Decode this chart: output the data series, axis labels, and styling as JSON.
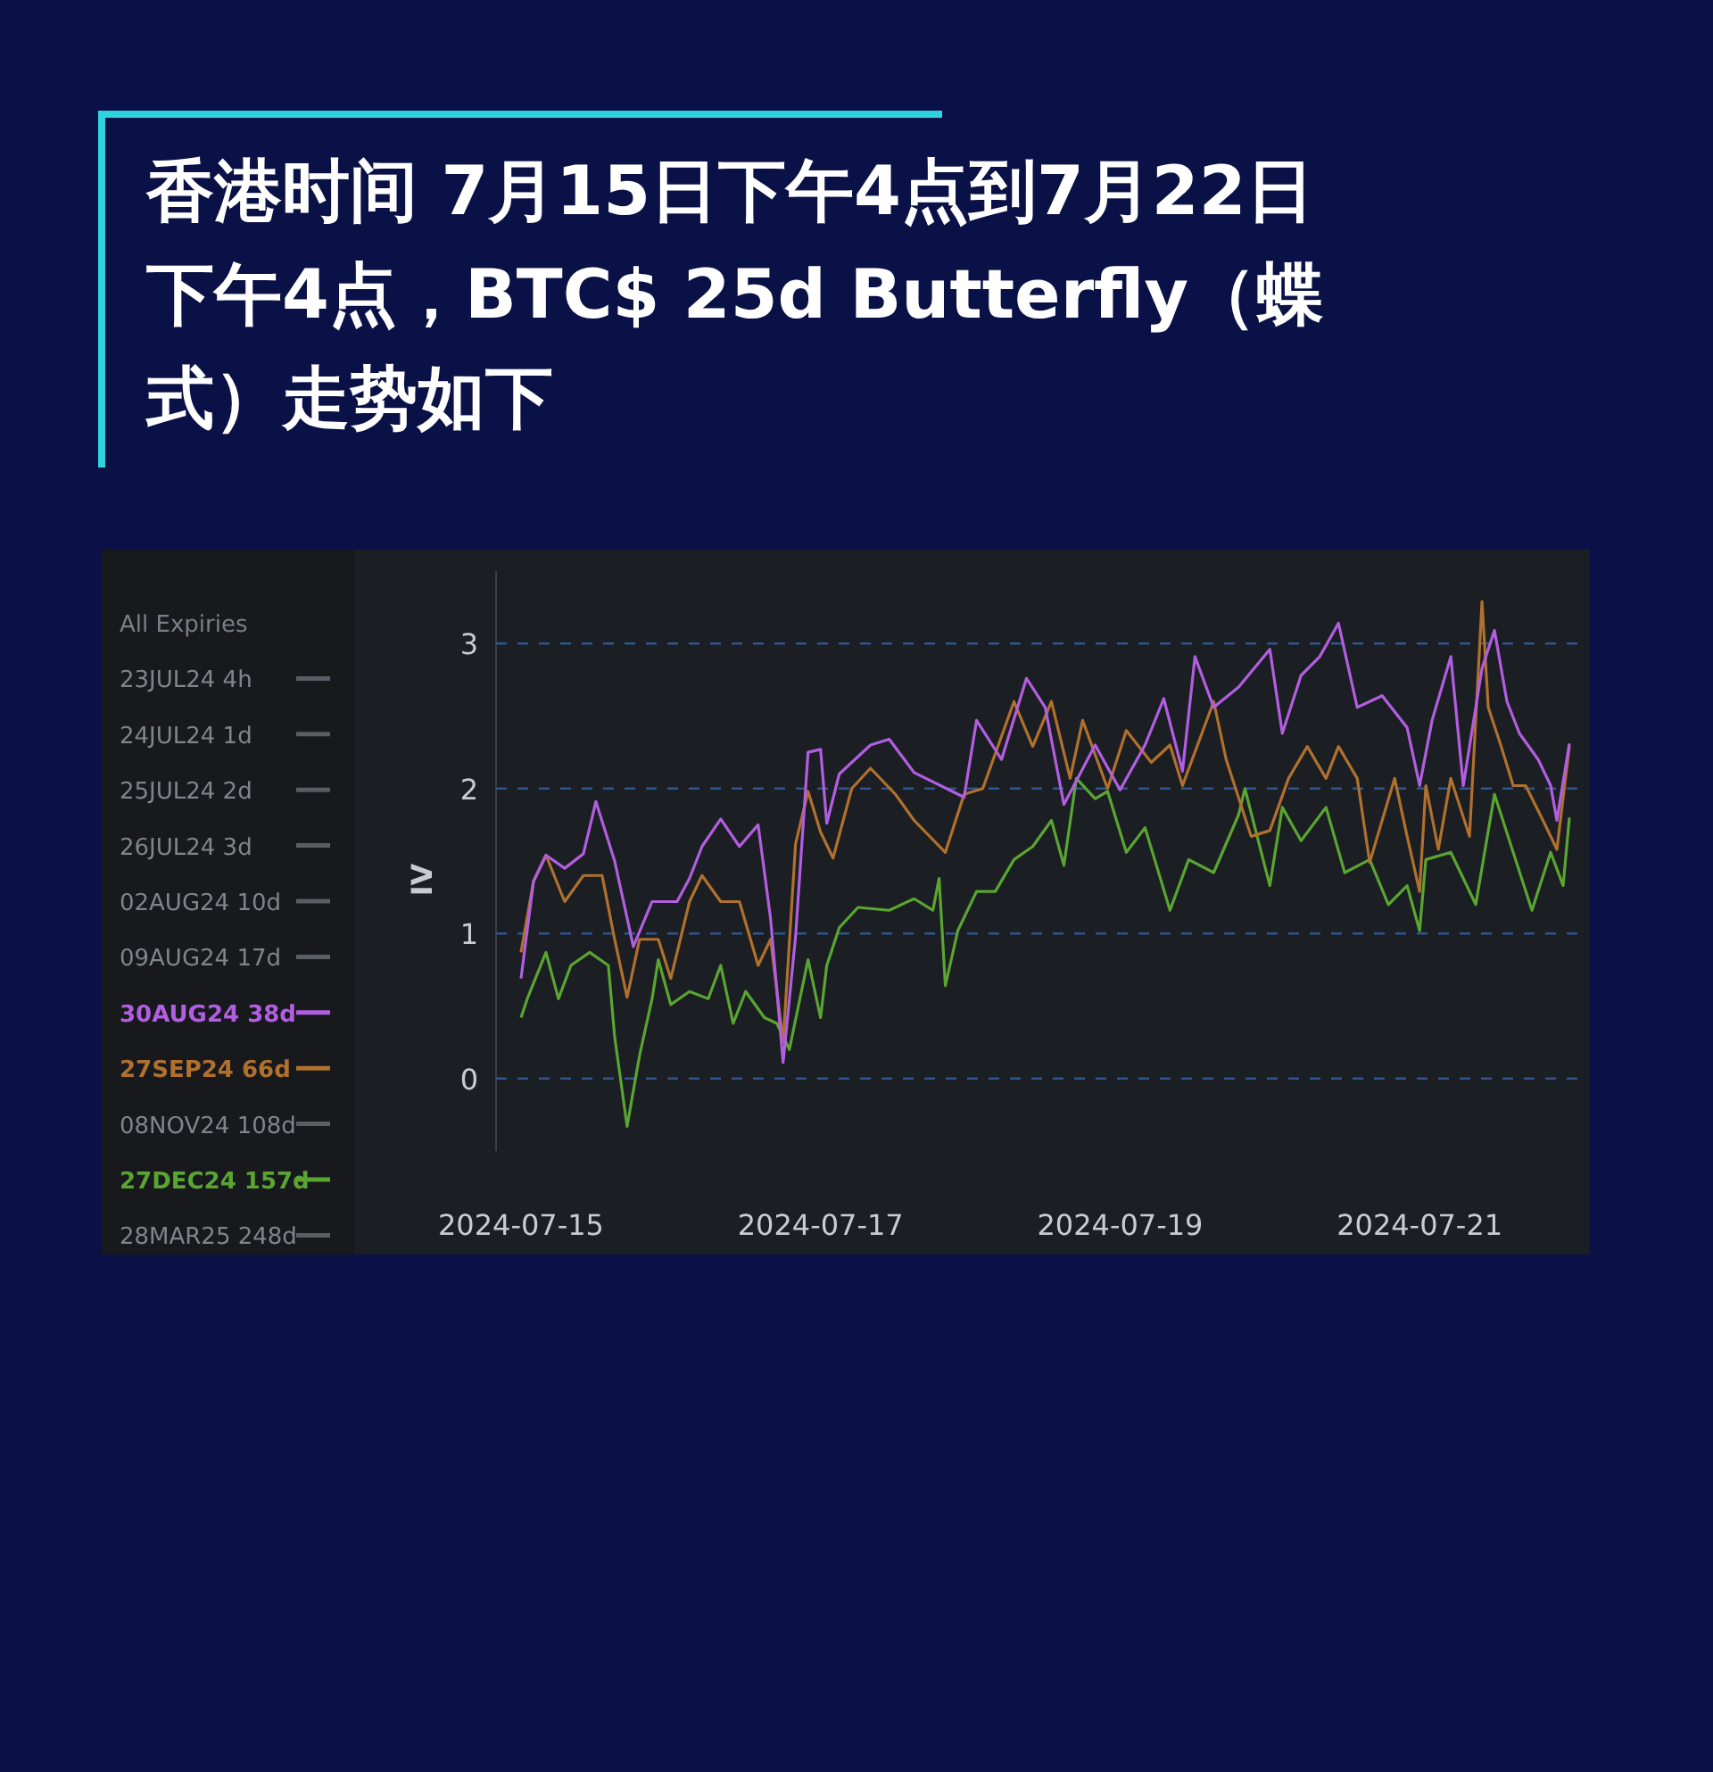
{
  "chart_data": {
    "type": "line",
    "title": "香港时间 7月15日下午4点到7月22日下午4点，BTC$ 25d Butterfly（蝶式）走势如下",
    "ylabel": "IV",
    "legend_title": "All Expiries",
    "legend": "left",
    "grid": "y",
    "xlim": [
      "2024-07-14T20:00",
      "2024-07-22T03:00"
    ],
    "xticks": [
      "2024-07-15",
      "2024-07-17",
      "2024-07-19",
      "2024-07-21"
    ],
    "ylim": [
      -0.5,
      3.5
    ],
    "yticks": [
      0,
      1,
      2,
      3
    ],
    "series": [
      {
        "name": "23JUL24 4h",
        "color": "#5a5e64"
      },
      {
        "name": "24JUL24 1d",
        "color": "#5a5e64"
      },
      {
        "name": "25JUL24 2d",
        "color": "#5a5e64"
      },
      {
        "name": "26JUL24 3d",
        "color": "#5a5e64"
      },
      {
        "name": "02AUG24 10d",
        "color": "#5a5e64"
      },
      {
        "name": "09AUG24 17d",
        "color": "#5a5e64"
      },
      {
        "name": "30AUG24 38d",
        "color": "#b25ee0",
        "x": [
          "2024-07-15T00:00",
          "2024-07-15T02:00",
          "2024-07-15T04:00",
          "2024-07-15T07:00",
          "2024-07-15T10:00",
          "2024-07-15T12:00",
          "2024-07-15T15:00",
          "2024-07-15T18:00",
          "2024-07-15T21:00",
          "2024-07-16T01:00",
          "2024-07-16T03:00",
          "2024-07-16T05:00",
          "2024-07-16T08:00",
          "2024-07-16T11:00",
          "2024-07-16T14:00",
          "2024-07-16T16:00",
          "2024-07-16T18:00",
          "2024-07-16T20:00",
          "2024-07-16T22:00",
          "2024-07-17T00:00",
          "2024-07-17T01:00",
          "2024-07-17T03:00",
          "2024-07-17T08:00",
          "2024-07-17T11:00",
          "2024-07-17T15:00",
          "2024-07-17T23:00",
          "2024-07-18T01:00",
          "2024-07-18T05:00",
          "2024-07-18T09:00",
          "2024-07-18T12:00",
          "2024-07-18T15:00",
          "2024-07-18T20:00",
          "2024-07-19T00:00",
          "2024-07-19T04:00",
          "2024-07-19T07:00",
          "2024-07-19T10:00",
          "2024-07-19T12:00",
          "2024-07-19T15:00",
          "2024-07-19T19:00",
          "2024-07-20T00:00",
          "2024-07-20T02:00",
          "2024-07-20T05:00",
          "2024-07-20T08:00",
          "2024-07-20T11:00",
          "2024-07-20T14:00",
          "2024-07-20T18:00",
          "2024-07-20T22:00",
          "2024-07-21T00:00",
          "2024-07-21T02:00",
          "2024-07-21T05:00",
          "2024-07-21T07:00",
          "2024-07-21T10:00",
          "2024-07-21T12:00",
          "2024-07-21T14:00",
          "2024-07-21T16:00",
          "2024-07-21T19:00",
          "2024-07-21T21:00",
          "2024-07-21T22:00",
          "2024-07-22T00:00"
        ],
        "values": [
          0.69,
          1.36,
          1.54,
          1.45,
          1.55,
          1.91,
          1.5,
          0.91,
          1.22,
          1.22,
          1.38,
          1.6,
          1.79,
          1.6,
          1.75,
          1.1,
          0.11,
          0.98,
          2.25,
          2.27,
          1.76,
          2.1,
          2.3,
          2.34,
          2.11,
          1.94,
          2.47,
          2.2,
          2.76,
          2.56,
          1.89,
          2.3,
          1.99,
          2.3,
          2.62,
          2.12,
          2.91,
          2.56,
          2.7,
          2.96,
          2.38,
          2.78,
          2.91,
          3.14,
          2.56,
          2.64,
          2.42,
          2.02,
          2.47,
          2.91,
          2.02,
          2.83,
          3.09,
          2.6,
          2.38,
          2.2,
          2.02,
          1.78,
          2.31
        ]
      },
      {
        "name": "27SEP24 66d",
        "color": "#b0702e",
        "x": [
          "2024-07-15T00:00",
          "2024-07-15T02:00",
          "2024-07-15T04:00",
          "2024-07-15T07:00",
          "2024-07-15T10:00",
          "2024-07-15T13:00",
          "2024-07-15T15:00",
          "2024-07-15T17:00",
          "2024-07-15T19:00",
          "2024-07-15T22:00",
          "2024-07-16T00:00",
          "2024-07-16T03:00",
          "2024-07-16T05:00",
          "2024-07-16T08:00",
          "2024-07-16T11:00",
          "2024-07-16T14:00",
          "2024-07-16T16:00",
          "2024-07-16T18:00",
          "2024-07-16T20:00",
          "2024-07-16T22:00",
          "2024-07-17T00:00",
          "2024-07-17T02:00",
          "2024-07-17T05:00",
          "2024-07-17T08:00",
          "2024-07-17T12:00",
          "2024-07-17T15:00",
          "2024-07-17T20:00",
          "2024-07-17T23:00",
          "2024-07-18T02:00",
          "2024-07-18T07:00",
          "2024-07-18T10:00",
          "2024-07-18T13:00",
          "2024-07-18T16:00",
          "2024-07-18T18:00",
          "2024-07-18T22:00",
          "2024-07-19T01:00",
          "2024-07-19T05:00",
          "2024-07-19T08:00",
          "2024-07-19T10:00",
          "2024-07-19T15:00",
          "2024-07-19T17:00",
          "2024-07-19T21:00",
          "2024-07-20T00:00",
          "2024-07-20T03:00",
          "2024-07-20T06:00",
          "2024-07-20T09:00",
          "2024-07-20T11:00",
          "2024-07-20T14:00",
          "2024-07-20T16:00",
          "2024-07-20T20:00",
          "2024-07-20T22:00",
          "2024-07-21T00:00",
          "2024-07-21T01:00",
          "2024-07-21T03:00",
          "2024-07-21T05:00",
          "2024-07-21T08:00",
          "2024-07-21T10:00",
          "2024-07-21T11:00",
          "2024-07-21T13:00",
          "2024-07-21T15:00",
          "2024-07-21T17:00",
          "2024-07-21T20:00",
          "2024-07-21T22:00",
          "2024-07-22T00:00"
        ],
        "values": [
          0.87,
          1.36,
          1.54,
          1.22,
          1.4,
          1.4,
          0.96,
          0.56,
          0.96,
          0.96,
          0.69,
          1.22,
          1.4,
          1.22,
          1.22,
          0.78,
          0.96,
          0.25,
          1.62,
          1.98,
          1.7,
          1.52,
          2.0,
          2.14,
          1.96,
          1.78,
          1.56,
          1.96,
          2.0,
          2.6,
          2.29,
          2.6,
          2.07,
          2.47,
          2.0,
          2.4,
          2.18,
          2.3,
          2.02,
          2.6,
          2.2,
          1.67,
          1.71,
          2.07,
          2.29,
          2.07,
          2.29,
          2.07,
          1.49,
          2.07,
          1.67,
          1.29,
          2.02,
          1.58,
          2.07,
          1.67,
          3.29,
          2.56,
          2.3,
          2.02,
          2.02,
          1.76,
          1.58,
          2.29
        ]
      },
      {
        "name": "08NOV24 108d",
        "color": "#5a5e64"
      },
      {
        "name": "27DEC24 157d",
        "color": "#5aa532",
        "x": [
          "2024-07-15T00:00",
          "2024-07-15T01:00",
          "2024-07-15T04:00",
          "2024-07-15T06:00",
          "2024-07-15T08:00",
          "2024-07-15T11:00",
          "2024-07-15T14:00",
          "2024-07-15T15:00",
          "2024-07-15T17:00",
          "2024-07-15T19:00",
          "2024-07-15T21:00",
          "2024-07-15T22:00",
          "2024-07-16T00:00",
          "2024-07-16T03:00",
          "2024-07-16T06:00",
          "2024-07-16T08:00",
          "2024-07-16T10:00",
          "2024-07-16T12:00",
          "2024-07-16T15:00",
          "2024-07-16T17:00",
          "2024-07-16T19:00",
          "2024-07-16T22:00",
          "2024-07-17T00:00",
          "2024-07-17T01:00",
          "2024-07-17T03:00",
          "2024-07-17T06:00",
          "2024-07-17T11:00",
          "2024-07-17T15:00",
          "2024-07-17T18:00",
          "2024-07-17T19:00",
          "2024-07-17T20:00",
          "2024-07-17T22:00",
          "2024-07-18T01:00",
          "2024-07-18T04:00",
          "2024-07-18T07:00",
          "2024-07-18T10:00",
          "2024-07-18T13:00",
          "2024-07-18T15:00",
          "2024-07-18T17:00",
          "2024-07-18T20:00",
          "2024-07-18T22:00",
          "2024-07-19T01:00",
          "2024-07-19T04:00",
          "2024-07-19T08:00",
          "2024-07-19T11:00",
          "2024-07-19T15:00",
          "2024-07-19T19:00",
          "2024-07-19T20:00",
          "2024-07-20T00:00",
          "2024-07-20T02:00",
          "2024-07-20T05:00",
          "2024-07-20T09:00",
          "2024-07-20T12:00",
          "2024-07-20T16:00",
          "2024-07-20T19:00",
          "2024-07-20T22:00",
          "2024-07-21T00:00",
          "2024-07-21T01:00",
          "2024-07-21T05:00",
          "2024-07-21T09:00",
          "2024-07-21T12:00",
          "2024-07-21T15:00",
          "2024-07-21T18:00",
          "2024-07-21T21:00",
          "2024-07-21T23:00",
          "2024-07-22T00:00"
        ],
        "values": [
          0.42,
          0.55,
          0.87,
          0.55,
          0.78,
          0.87,
          0.78,
          0.29,
          -0.33,
          0.16,
          0.55,
          0.82,
          0.51,
          0.6,
          0.55,
          0.78,
          0.38,
          0.6,
          0.42,
          0.38,
          0.2,
          0.82,
          0.42,
          0.78,
          1.04,
          1.18,
          1.16,
          1.24,
          1.16,
          1.38,
          0.64,
          1.02,
          1.29,
          1.29,
          1.51,
          1.6,
          1.78,
          1.47,
          2.07,
          1.93,
          1.98,
          1.56,
          1.73,
          1.16,
          1.51,
          1.42,
          1.82,
          2.0,
          1.33,
          1.87,
          1.64,
          1.87,
          1.42,
          1.51,
          1.2,
          1.33,
          1.02,
          1.51,
          1.56,
          1.2,
          1.96,
          1.56,
          1.16,
          1.56,
          1.33,
          1.8
        ]
      },
      {
        "name": "28MAR25 248d",
        "color": "#5a5e64"
      }
    ]
  }
}
